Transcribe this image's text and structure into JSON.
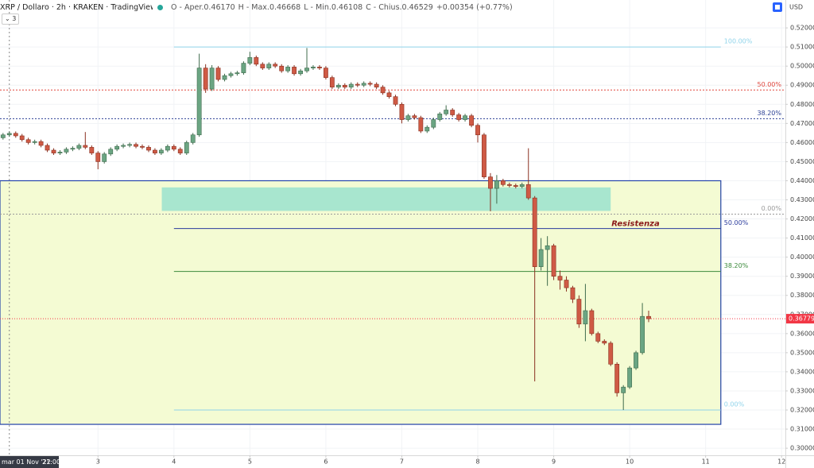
{
  "chart_data": {
    "type": "candlestick",
    "title": "XRP / Dollaro · 2h · KRAKEN · TradingView",
    "ohlc_legend": [
      "O - Aper.0.46170",
      "H - Max.0.46668",
      "L - Min.0.46108",
      "C - Chius.0.46529",
      "+0.00354 (+0.77%)"
    ],
    "indicator_count": "3",
    "currency": "USD",
    "up_color": "#6ba583",
    "down_color": "#cf5a45",
    "grid": true,
    "xlim": [
      1.71,
      12.05
    ],
    "ylim": [
      0.2963,
      0.5346
    ],
    "xticks": [
      3,
      4,
      5,
      6,
      7,
      8,
      9,
      10,
      11,
      12
    ],
    "yticks": [
      {
        "value": 0.3,
        "label": "0.30000"
      },
      {
        "value": 0.31,
        "label": "0.31000"
      },
      {
        "value": 0.32,
        "label": "0.32000"
      },
      {
        "value": 0.33,
        "label": "0.33000"
      },
      {
        "value": 0.34,
        "label": "0.34000"
      },
      {
        "value": 0.35,
        "label": "0.35000"
      },
      {
        "value": 0.36,
        "label": "0.36000"
      },
      {
        "value": 0.37,
        "label": "0.37000"
      },
      {
        "value": 0.38,
        "label": "0.38000"
      },
      {
        "value": 0.39,
        "label": "0.39000"
      },
      {
        "value": 0.4,
        "label": "0.40000"
      },
      {
        "value": 0.41,
        "label": "0.41000"
      },
      {
        "value": 0.42,
        "label": "0.42000"
      },
      {
        "value": 0.43,
        "label": "0.43000"
      },
      {
        "value": 0.44,
        "label": "0.44000"
      },
      {
        "value": 0.45,
        "label": "0.45000"
      },
      {
        "value": 0.46,
        "label": "0.46000"
      },
      {
        "value": 0.47,
        "label": "0.47000"
      },
      {
        "value": 0.48,
        "label": "0.48000"
      },
      {
        "value": 0.49,
        "label": "0.49000"
      },
      {
        "value": 0.5,
        "label": "0.50000"
      },
      {
        "value": 0.51,
        "label": "0.51000"
      },
      {
        "value": 0.52,
        "label": "0.52000"
      }
    ],
    "crosshair": {
      "x": 1.833,
      "label": "mar 01 Nov '22",
      "time": "21:00"
    },
    "last_price": {
      "value": 0.36779,
      "label": "0.36779",
      "color": "#f23645"
    },
    "zones": [
      {
        "x": [
          1.71,
          11.2
        ],
        "y": [
          0.3125,
          0.44
        ],
        "fill": "#f4fbd3",
        "stroke": "#2342a8"
      },
      {
        "x": [
          3.84,
          9.75
        ],
        "y": [
          0.4242,
          0.4365
        ],
        "fill": "#a8e6cf",
        "stroke": "none"
      }
    ],
    "levels": [
      {
        "label": "100.00%",
        "value": 0.51,
        "color": "#8fd3ea",
        "dashed": false,
        "x": [
          4.0,
          11.2
        ]
      },
      {
        "label": "50.00%",
        "value": 0.4875,
        "color": "#e0463c",
        "dashed": true,
        "x": [
          1.71,
          12.05
        ]
      },
      {
        "label": "38.20%",
        "value": 0.4725,
        "color": "#2a3f94",
        "dashed": true,
        "x": [
          1.71,
          12.05
        ]
      },
      {
        "label": "0.00%",
        "value": 0.4225,
        "color": "#9a9a9a",
        "dashed": true,
        "x": [
          1.71,
          12.05
        ]
      },
      {
        "label": "50.00%",
        "value": 0.415,
        "color": "#2a3a9c",
        "dashed": false,
        "x": [
          4.0,
          11.2
        ]
      },
      {
        "label": "38.20%",
        "value": 0.3925,
        "color": "#3b8a3b",
        "dashed": false,
        "x": [
          4.0,
          11.2
        ]
      },
      {
        "label": "0.00%",
        "value": 0.32,
        "color": "#8fd3ea",
        "dashed": false,
        "x": [
          4.0,
          11.2
        ]
      }
    ],
    "annotations": [
      {
        "text": "Resistenza",
        "x": 9.76,
        "y": 0.4175,
        "color": "#8b1a1a"
      }
    ],
    "x": [
      1.75,
      1.833,
      1.917,
      2,
      2.083,
      2.167,
      2.25,
      2.333,
      2.417,
      2.5,
      2.583,
      2.667,
      2.75,
      2.833,
      2.917,
      3,
      3.083,
      3.167,
      3.25,
      3.333,
      3.417,
      3.5,
      3.583,
      3.667,
      3.75,
      3.833,
      3.917,
      4,
      4.083,
      4.167,
      4.25,
      4.333,
      4.417,
      4.5,
      4.583,
      4.667,
      4.75,
      4.833,
      4.917,
      5,
      5.083,
      5.167,
      5.25,
      5.333,
      5.417,
      5.5,
      5.583,
      5.667,
      5.75,
      5.833,
      5.917,
      6,
      6.083,
      6.167,
      6.25,
      6.333,
      6.417,
      6.5,
      6.583,
      6.667,
      6.75,
      6.833,
      6.917,
      7,
      7.083,
      7.167,
      7.25,
      7.333,
      7.417,
      7.5,
      7.583,
      7.667,
      7.75,
      7.833,
      7.917,
      8,
      8.083,
      8.167,
      8.25,
      8.333,
      8.417,
      8.5,
      8.583,
      8.667,
      8.75,
      8.833,
      8.917,
      9,
      9.083,
      9.167,
      9.25,
      9.333,
      9.417,
      9.5,
      9.583,
      9.667,
      9.75,
      9.833,
      9.917,
      10,
      10.083,
      10.167,
      10.25
    ],
    "open": [
      0.4625,
      0.464,
      0.4648,
      0.4635,
      0.4615,
      0.46,
      0.4605,
      0.4585,
      0.456,
      0.4545,
      0.455,
      0.4565,
      0.457,
      0.4585,
      0.4575,
      0.4545,
      0.45,
      0.454,
      0.4565,
      0.458,
      0.4585,
      0.459,
      0.458,
      0.4575,
      0.456,
      0.4545,
      0.456,
      0.458,
      0.4565,
      0.4545,
      0.46,
      0.464,
      0.499,
      0.488,
      0.499,
      0.493,
      0.495,
      0.496,
      0.4965,
      0.5015,
      0.5045,
      0.501,
      0.499,
      0.501,
      0.5,
      0.4975,
      0.4995,
      0.496,
      0.4975,
      0.499,
      0.4995,
      0.499,
      0.494,
      0.489,
      0.49,
      0.489,
      0.4905,
      0.49,
      0.491,
      0.4905,
      0.489,
      0.486,
      0.484,
      0.48,
      0.472,
      0.474,
      0.473,
      0.466,
      0.468,
      0.472,
      0.475,
      0.477,
      0.4745,
      0.472,
      0.474,
      0.469,
      0.464,
      0.442,
      0.436,
      0.44,
      0.438,
      0.4375,
      0.437,
      0.438,
      0.431,
      0.395,
      0.404,
      0.406,
      0.39,
      0.388,
      0.384,
      0.378,
      0.365,
      0.372,
      0.36,
      0.356,
      0.355,
      0.344,
      0.329,
      0.332,
      0.342,
      0.35,
      0.369
    ],
    "high": [
      0.465,
      0.4658,
      0.4658,
      0.4645,
      0.4625,
      0.4615,
      0.4615,
      0.4595,
      0.457,
      0.456,
      0.4575,
      0.458,
      0.4595,
      0.4655,
      0.4585,
      0.4555,
      0.455,
      0.4575,
      0.459,
      0.4595,
      0.46,
      0.46,
      0.459,
      0.4585,
      0.457,
      0.457,
      0.459,
      0.459,
      0.4575,
      0.461,
      0.465,
      0.5065,
      0.501,
      0.5005,
      0.5,
      0.496,
      0.497,
      0.4975,
      0.5025,
      0.5075,
      0.5055,
      0.502,
      0.502,
      0.502,
      0.501,
      0.5005,
      0.5005,
      0.4985,
      0.5095,
      0.5005,
      0.5005,
      0.5,
      0.495,
      0.491,
      0.491,
      0.4915,
      0.4915,
      0.492,
      0.492,
      0.4915,
      0.49,
      0.487,
      0.485,
      0.481,
      0.475,
      0.475,
      0.474,
      0.469,
      0.473,
      0.476,
      0.4795,
      0.478,
      0.4755,
      0.475,
      0.475,
      0.47,
      0.465,
      0.444,
      0.443,
      0.441,
      0.439,
      0.4385,
      0.439,
      0.457,
      0.432,
      0.41,
      0.411,
      0.407,
      0.393,
      0.39,
      0.385,
      0.38,
      0.386,
      0.373,
      0.361,
      0.357,
      0.356,
      0.345,
      0.333,
      0.343,
      0.351,
      0.376,
      0.372
    ],
    "low": [
      0.4615,
      0.463,
      0.4625,
      0.4605,
      0.459,
      0.459,
      0.4575,
      0.455,
      0.4535,
      0.4535,
      0.454,
      0.4555,
      0.456,
      0.4565,
      0.4535,
      0.446,
      0.449,
      0.453,
      0.4555,
      0.457,
      0.4575,
      0.457,
      0.4565,
      0.455,
      0.4535,
      0.4535,
      0.455,
      0.4555,
      0.4535,
      0.4535,
      0.459,
      0.463,
      0.486,
      0.487,
      0.492,
      0.492,
      0.494,
      0.495,
      0.4955,
      0.5005,
      0.5,
      0.498,
      0.498,
      0.499,
      0.4965,
      0.4965,
      0.495,
      0.495,
      0.4965,
      0.498,
      0.498,
      0.493,
      0.488,
      0.488,
      0.488,
      0.488,
      0.489,
      0.489,
      0.4895,
      0.488,
      0.485,
      0.483,
      0.479,
      0.47,
      0.471,
      0.472,
      0.465,
      0.465,
      0.467,
      0.471,
      0.474,
      0.4735,
      0.471,
      0.471,
      0.468,
      0.46,
      0.441,
      0.424,
      0.428,
      0.437,
      0.4365,
      0.436,
      0.436,
      0.43,
      0.335,
      0.393,
      0.385,
      0.388,
      0.383,
      0.382,
      0.376,
      0.363,
      0.356,
      0.359,
      0.355,
      0.354,
      0.343,
      0.327,
      0.32,
      0.331,
      0.341,
      0.349,
      0.366
    ],
    "close": [
      0.464,
      0.4648,
      0.4635,
      0.4615,
      0.46,
      0.4605,
      0.4585,
      0.456,
      0.4545,
      0.455,
      0.4565,
      0.457,
      0.4585,
      0.4575,
      0.4545,
      0.45,
      0.454,
      0.4565,
      0.458,
      0.4585,
      0.459,
      0.458,
      0.4575,
      0.456,
      0.4545,
      0.456,
      0.458,
      0.4565,
      0.4545,
      0.46,
      0.464,
      0.499,
      0.488,
      0.499,
      0.493,
      0.495,
      0.496,
      0.4965,
      0.5015,
      0.5045,
      0.501,
      0.499,
      0.501,
      0.5,
      0.4975,
      0.4995,
      0.496,
      0.4975,
      0.499,
      0.4995,
      0.499,
      0.494,
      0.489,
      0.49,
      0.489,
      0.4905,
      0.49,
      0.491,
      0.4905,
      0.489,
      0.486,
      0.484,
      0.48,
      0.472,
      0.474,
      0.473,
      0.466,
      0.468,
      0.472,
      0.475,
      0.477,
      0.4745,
      0.472,
      0.474,
      0.469,
      0.464,
      0.442,
      0.436,
      0.44,
      0.438,
      0.4375,
      0.437,
      0.438,
      0.431,
      0.395,
      0.404,
      0.406,
      0.39,
      0.388,
      0.384,
      0.378,
      0.365,
      0.372,
      0.36,
      0.356,
      0.355,
      0.344,
      0.329,
      0.332,
      0.342,
      0.35,
      0.369,
      0.36779
    ]
  }
}
